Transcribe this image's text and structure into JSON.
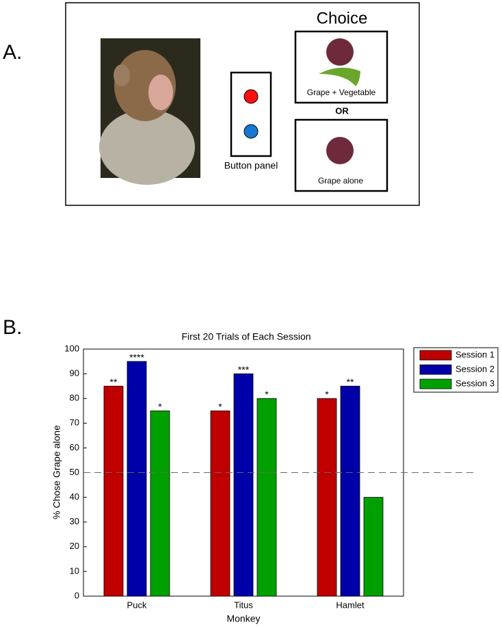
{
  "diagram": {
    "panel_a_label": "A.",
    "panel_b_label": "B.",
    "button_panel_label": "Button panel",
    "choice_title": "Choice",
    "option_1_label": "Grape + Vegetable",
    "separator": "OR",
    "option_2_label": "Grape alone"
  },
  "chart_data": {
    "type": "bar",
    "title": "First 20 Trials of Each Session",
    "x_label": "Monkey",
    "y_label": "% Chose Grape alone",
    "categories": [
      "Puck",
      "Titus",
      "Hamlet"
    ],
    "series": [
      {
        "name": "Session 1",
        "color": "#c00000",
        "values": [
          85,
          75,
          80
        ],
        "annotations": [
          "**",
          "*",
          "*"
        ]
      },
      {
        "name": "Session 2",
        "color": "#0000a8",
        "values": [
          95,
          90,
          85
        ],
        "annotations": [
          "****",
          "***",
          "**"
        ]
      },
      {
        "name": "Session 3",
        "color": "#00a000",
        "values": [
          75,
          80,
          40
        ],
        "annotations": [
          "*",
          "*",
          null
        ]
      }
    ],
    "ylim": [
      0,
      100
    ],
    "yticks": [
      0,
      10,
      20,
      30,
      40,
      50,
      60,
      70,
      80,
      90,
      100
    ],
    "reference_line": 50,
    "grid": false,
    "legend_position": "outside-top-right"
  }
}
